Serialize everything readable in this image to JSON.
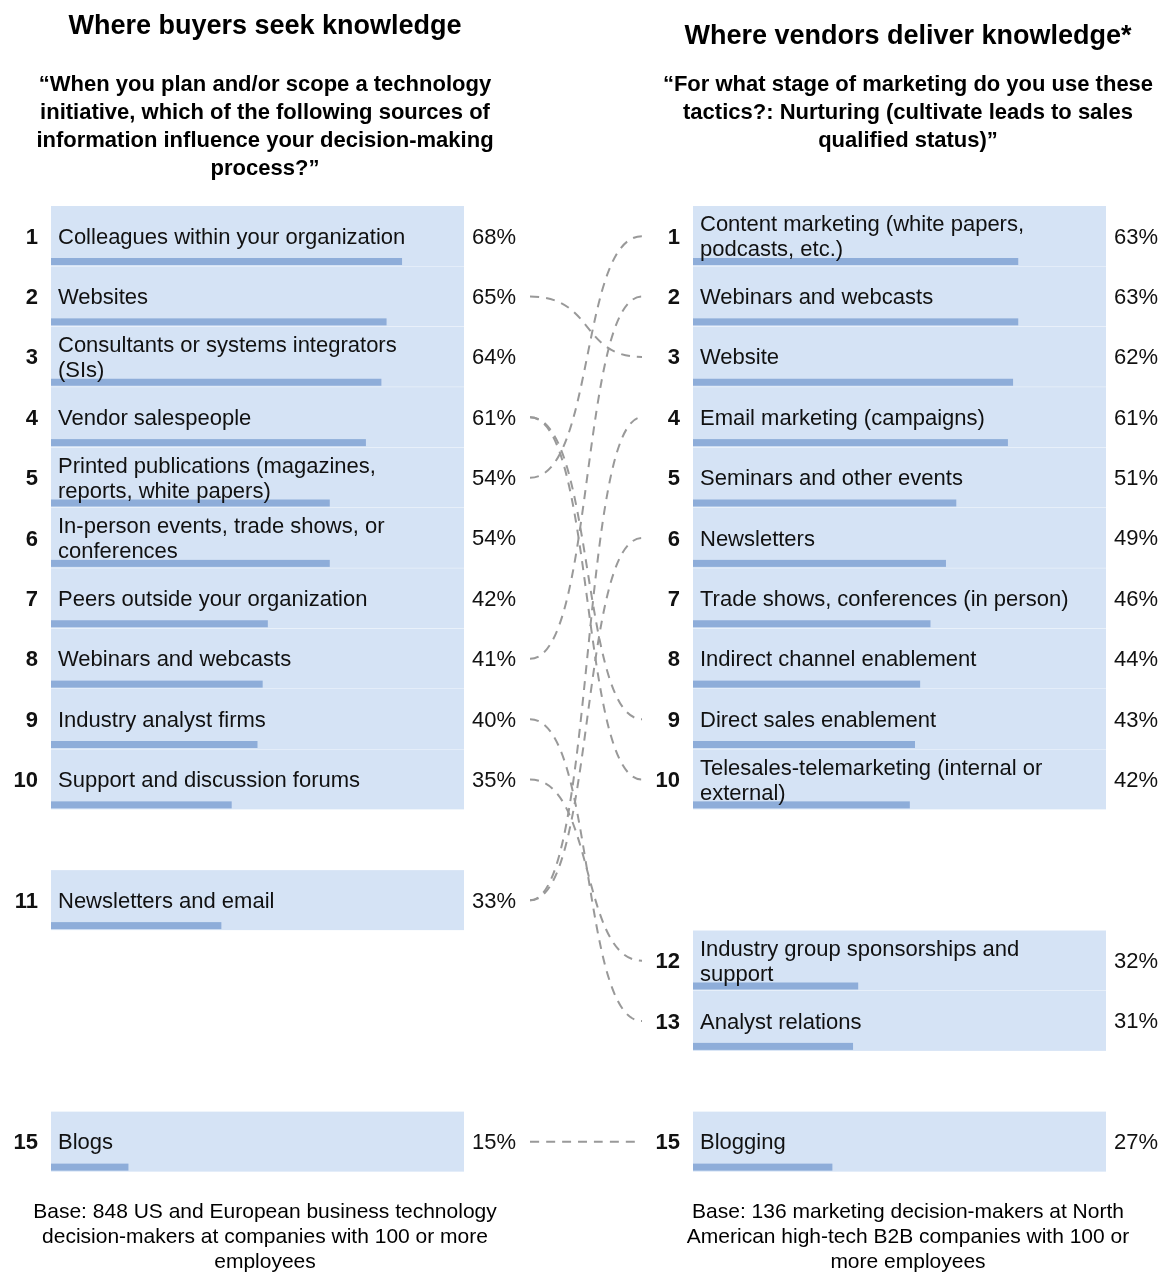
{
  "chart_data": [
    {
      "type": "bar",
      "orientation": "horizontal",
      "title": "Where buyers seek knowledge",
      "subtitle": "“When you plan and/or scope a technology initiative, which of the following sources of information influence your decision-making process?”",
      "categories": [
        "Colleagues within your organization",
        "Websites",
        "Consultants or systems integrators (SIs)",
        "Vendor salespeople",
        "Printed publications (magazines, reports, white papers)",
        "In-person events, trade shows, or conferences",
        "Peers outside your organization",
        "Webinars and webcasts",
        "Industry analyst firms",
        "Support and discussion forums",
        null,
        "Newsletters and email",
        null,
        null,
        null,
        "Blogs"
      ],
      "values": [
        68,
        65,
        64,
        61,
        54,
        54,
        42,
        41,
        40,
        35,
        null,
        33,
        null,
        null,
        null,
        15
      ],
      "value_labels": [
        "68%",
        "65%",
        "64%",
        "61%",
        "54%",
        "54%",
        "42%",
        "41%",
        "40%",
        "35%",
        null,
        "33%",
        null,
        null,
        null,
        "15%"
      ],
      "color": "#8eadd9",
      "tick_labels": "y",
      "annotations": [
        "1",
        "2",
        "3",
        "4",
        "5",
        "6",
        "7",
        "8",
        "9",
        "10",
        "11",
        "15",
        "Base: 848 US and European business technology decision-makers at companies with 100 or more employees"
      ]
    },
    {
      "type": "bar",
      "orientation": "horizontal",
      "title": "Where vendors deliver knowledge*",
      "subtitle": "“For what stage of marketing do you use these tactics?: Nurturing (cultivate leads to sales qualified status)”",
      "categories": [
        "Content marketing (white papers, podcasts, etc.)",
        "Webinars and webcasts",
        "Website",
        "Email marketing (campaigns)",
        "Seminars and other events",
        "Newsletters",
        "Trade shows, conferences (in person)",
        "Indirect channel enablement",
        "Direct sales enablement",
        "Telesales-telemarketing (internal or external)",
        null,
        null,
        "Industry group sponsorships and support",
        "Analyst relations",
        null,
        "Blogging"
      ],
      "values": [
        63,
        63,
        62,
        61,
        51,
        49,
        46,
        44,
        43,
        42,
        null,
        null,
        32,
        31,
        null,
        27
      ],
      "value_labels": [
        "63%",
        "63%",
        "62%",
        "61%",
        "51%",
        "49%",
        "46%",
        "44%",
        "43%",
        "42%",
        null,
        null,
        "32%",
        "31%",
        null,
        "27%"
      ],
      "color": "#8eadd9",
      "tick_labels": "y",
      "annotations": [
        "1",
        "2",
        "3",
        "4",
        "5",
        "6",
        "7",
        "8",
        "9",
        "10",
        "12",
        "13",
        "15",
        "Base: 136 marketing decision-makers at North American high-tech B2B companies with 100 or more employees"
      ]
    }
  ]
}
